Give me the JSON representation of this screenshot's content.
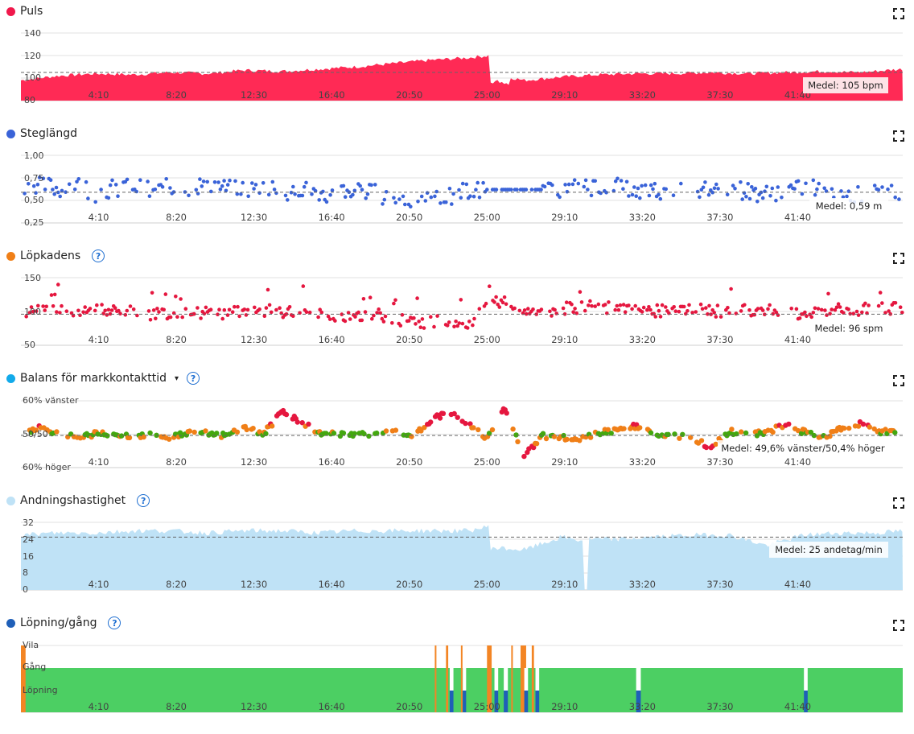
{
  "x_ticks": [
    "4:10",
    "8:20",
    "12:30",
    "16:40",
    "20:50",
    "25:00",
    "29:10",
    "33:20",
    "37:30",
    "41:40"
  ],
  "chart_data": [
    {
      "type": "area",
      "title": "Puls",
      "color": "#ff2a55",
      "ylim": [
        80,
        140
      ],
      "yticks": [
        "140",
        "120",
        "100",
        "80"
      ],
      "mean": 105,
      "mean_label": "Medel: 105 bpm",
      "xlim_min": [
        0,
        47.3
      ],
      "series": [
        {
          "x": [
            0,
            2,
            4,
            6,
            8,
            10,
            12,
            14,
            16,
            18,
            20,
            22,
            24,
            25.1,
            25.2,
            27,
            29,
            31,
            33,
            35,
            37,
            39,
            41,
            43,
            45,
            47.3
          ],
          "values": [
            98,
            102,
            104,
            103,
            105,
            104,
            107,
            106,
            108,
            110,
            113,
            116,
            118,
            120,
            104,
            98,
            101,
            103,
            104,
            104,
            105,
            104,
            105,
            106,
            105,
            108
          ]
        }
      ]
    },
    {
      "type": "scatter",
      "title": "Steglängd",
      "color": "#3a63d8",
      "ylim": [
        0.25,
        1.0
      ],
      "yticks": [
        "1,00",
        "0,75",
        "0,50",
        "0,25"
      ],
      "mean": 0.59,
      "mean_label": "Medel: 0,59 m",
      "series": [
        {
          "x": [
            0,
            1,
            2,
            3,
            4,
            5,
            6,
            7,
            8,
            9,
            10,
            11,
            12,
            13,
            14,
            15,
            16,
            17,
            18,
            19,
            20,
            21,
            22,
            23,
            24,
            25,
            26,
            27,
            28,
            29,
            30,
            31,
            32,
            33,
            34,
            35,
            36,
            37,
            38,
            39,
            40,
            41,
            42,
            43,
            44,
            45,
            46,
            47
          ],
          "values": [
            0.6,
            0.7,
            0.62,
            0.68,
            0.58,
            0.64,
            0.66,
            0.6,
            0.65,
            0.62,
            0.7,
            0.63,
            0.61,
            0.66,
            0.59,
            0.64,
            0.55,
            0.62,
            0.6,
            0.58,
            0.52,
            0.5,
            0.5,
            0.55,
            0.62,
            0.62,
            0.62,
            0.72,
            0.58,
            0.62,
            0.64,
            0.66,
            0.65,
            0.6,
            0.62,
            0.6,
            0.58,
            0.62,
            0.64,
            0.6,
            0.57,
            0.62,
            0.62,
            0.68,
            0.6,
            0.55,
            0.58,
            0.6
          ]
        }
      ]
    },
    {
      "type": "scatter",
      "title": "Löpkadens",
      "color": "#e5173f",
      "ylim": [
        50,
        150
      ],
      "yticks": [
        "150",
        "100",
        "50"
      ],
      "mean": 96,
      "mean_label": "Medel: 96 spm",
      "series": [
        {
          "x": [
            0,
            1,
            2,
            3,
            4,
            5,
            6,
            7,
            8,
            9,
            10,
            11,
            12,
            13,
            14,
            15,
            16,
            17,
            18,
            19,
            20,
            21,
            22,
            23,
            24,
            25,
            26,
            27,
            28,
            29,
            30,
            31,
            32,
            33,
            34,
            35,
            36,
            37,
            38,
            39,
            40,
            41,
            42,
            43,
            44,
            45,
            46,
            47
          ],
          "values": [
            100,
            105,
            102,
            98,
            104,
            100,
            103,
            96,
            98,
            95,
            99,
            97,
            100,
            102,
            98,
            100,
            97,
            93,
            95,
            96,
            88,
            85,
            84,
            88,
            82,
            110,
            118,
            95,
            100,
            104,
            106,
            108,
            102,
            104,
            100,
            103,
            105,
            100,
            102,
            101,
            104,
            98,
            96,
            100,
            104,
            102,
            106,
            104
          ]
        }
      ]
    },
    {
      "type": "scatter",
      "title": "Balans för markkontakttid",
      "colors": {
        "left": "#f07f17",
        "balanced": "#43a70f",
        "right": "#e5173f"
      },
      "yticks": [
        "60% vänster",
        "50/50",
        "60% höger"
      ],
      "ylim": [
        40,
        60
      ],
      "mean": 49.6,
      "mean_label": "Medel: 49,6% vänster/50,4% höger",
      "series": [
        {
          "x": [
            0,
            1,
            2,
            3,
            4,
            5,
            6,
            7,
            8,
            9,
            10,
            11,
            12,
            13,
            14,
            15,
            16,
            17,
            18,
            19,
            20,
            21,
            22,
            23,
            24,
            25,
            26,
            27,
            28,
            29,
            30,
            31,
            32,
            33,
            34,
            35,
            36,
            37,
            38,
            39,
            40,
            41,
            42,
            43,
            44,
            45,
            46,
            47
          ],
          "values": [
            50.5,
            51.8,
            50.3,
            48.9,
            50.2,
            50.0,
            49.4,
            50.1,
            49.0,
            50.6,
            50.3,
            49.6,
            52.0,
            50.0,
            56.5,
            54.0,
            50.5,
            49.7,
            50.3,
            49.8,
            50.6,
            49.5,
            54.2,
            57.0,
            53.0,
            49.0,
            57.8,
            43.5,
            49.4,
            49.0,
            48.8,
            50.5,
            51.2,
            52.4,
            50.3,
            49.7,
            48.6,
            46.2,
            50.8,
            50.0,
            50.4,
            52.8,
            50.6,
            49.0,
            51.7,
            53.0,
            50.8,
            51.0
          ]
        }
      ]
    },
    {
      "type": "area",
      "title": "Andningshastighet",
      "color": "#bfe2f6",
      "ylim": [
        0,
        32
      ],
      "yticks": [
        "32",
        "24",
        "16",
        "8",
        "0"
      ],
      "mean": 25,
      "mean_label": "Medel: 25 andetag/min",
      "series": [
        {
          "x": [
            0,
            2,
            4,
            6,
            8,
            10,
            12,
            14,
            16,
            18,
            20,
            22,
            24,
            25.1,
            25.2,
            27,
            29,
            30.3,
            30.4,
            32,
            34,
            36,
            38,
            40,
            42,
            44,
            46,
            47.3
          ],
          "values": [
            26,
            27,
            27,
            28,
            28,
            27,
            28,
            28,
            27,
            28,
            28,
            28,
            28,
            30,
            20,
            19,
            25,
            23,
            24,
            24,
            25,
            26,
            26,
            21,
            26,
            27,
            27,
            28
          ]
        }
      ]
    },
    {
      "type": "bar",
      "title": "Löpning/gång",
      "categories": [
        "Vila",
        "Gång",
        "Löpning"
      ],
      "colors": {
        "Löpning": "#4ccf63",
        "Gång": "#f38524",
        "Vila": "#1f5fb8"
      }
    }
  ],
  "panels": [
    {
      "title": "Puls",
      "dot": "#f0184b",
      "help": false,
      "caret": false
    },
    {
      "title": "Steglängd",
      "dot": "#3a63d8",
      "help": false,
      "caret": false
    },
    {
      "title": "Löpkadens",
      "dot": "#f07f17",
      "help": true,
      "caret": false
    },
    {
      "title": "Balans för markkontakttid",
      "dot": "#12aaea",
      "help": true,
      "caret": true
    },
    {
      "title": "Andningshastighet",
      "dot": "#bfe2f6",
      "help": true,
      "caret": false
    },
    {
      "title": "Löpning/gång",
      "dot": "#1f5fb8",
      "help": true,
      "caret": false
    }
  ],
  "icons": {
    "help": "?",
    "expand": "expand-icon",
    "caret": "▾"
  }
}
